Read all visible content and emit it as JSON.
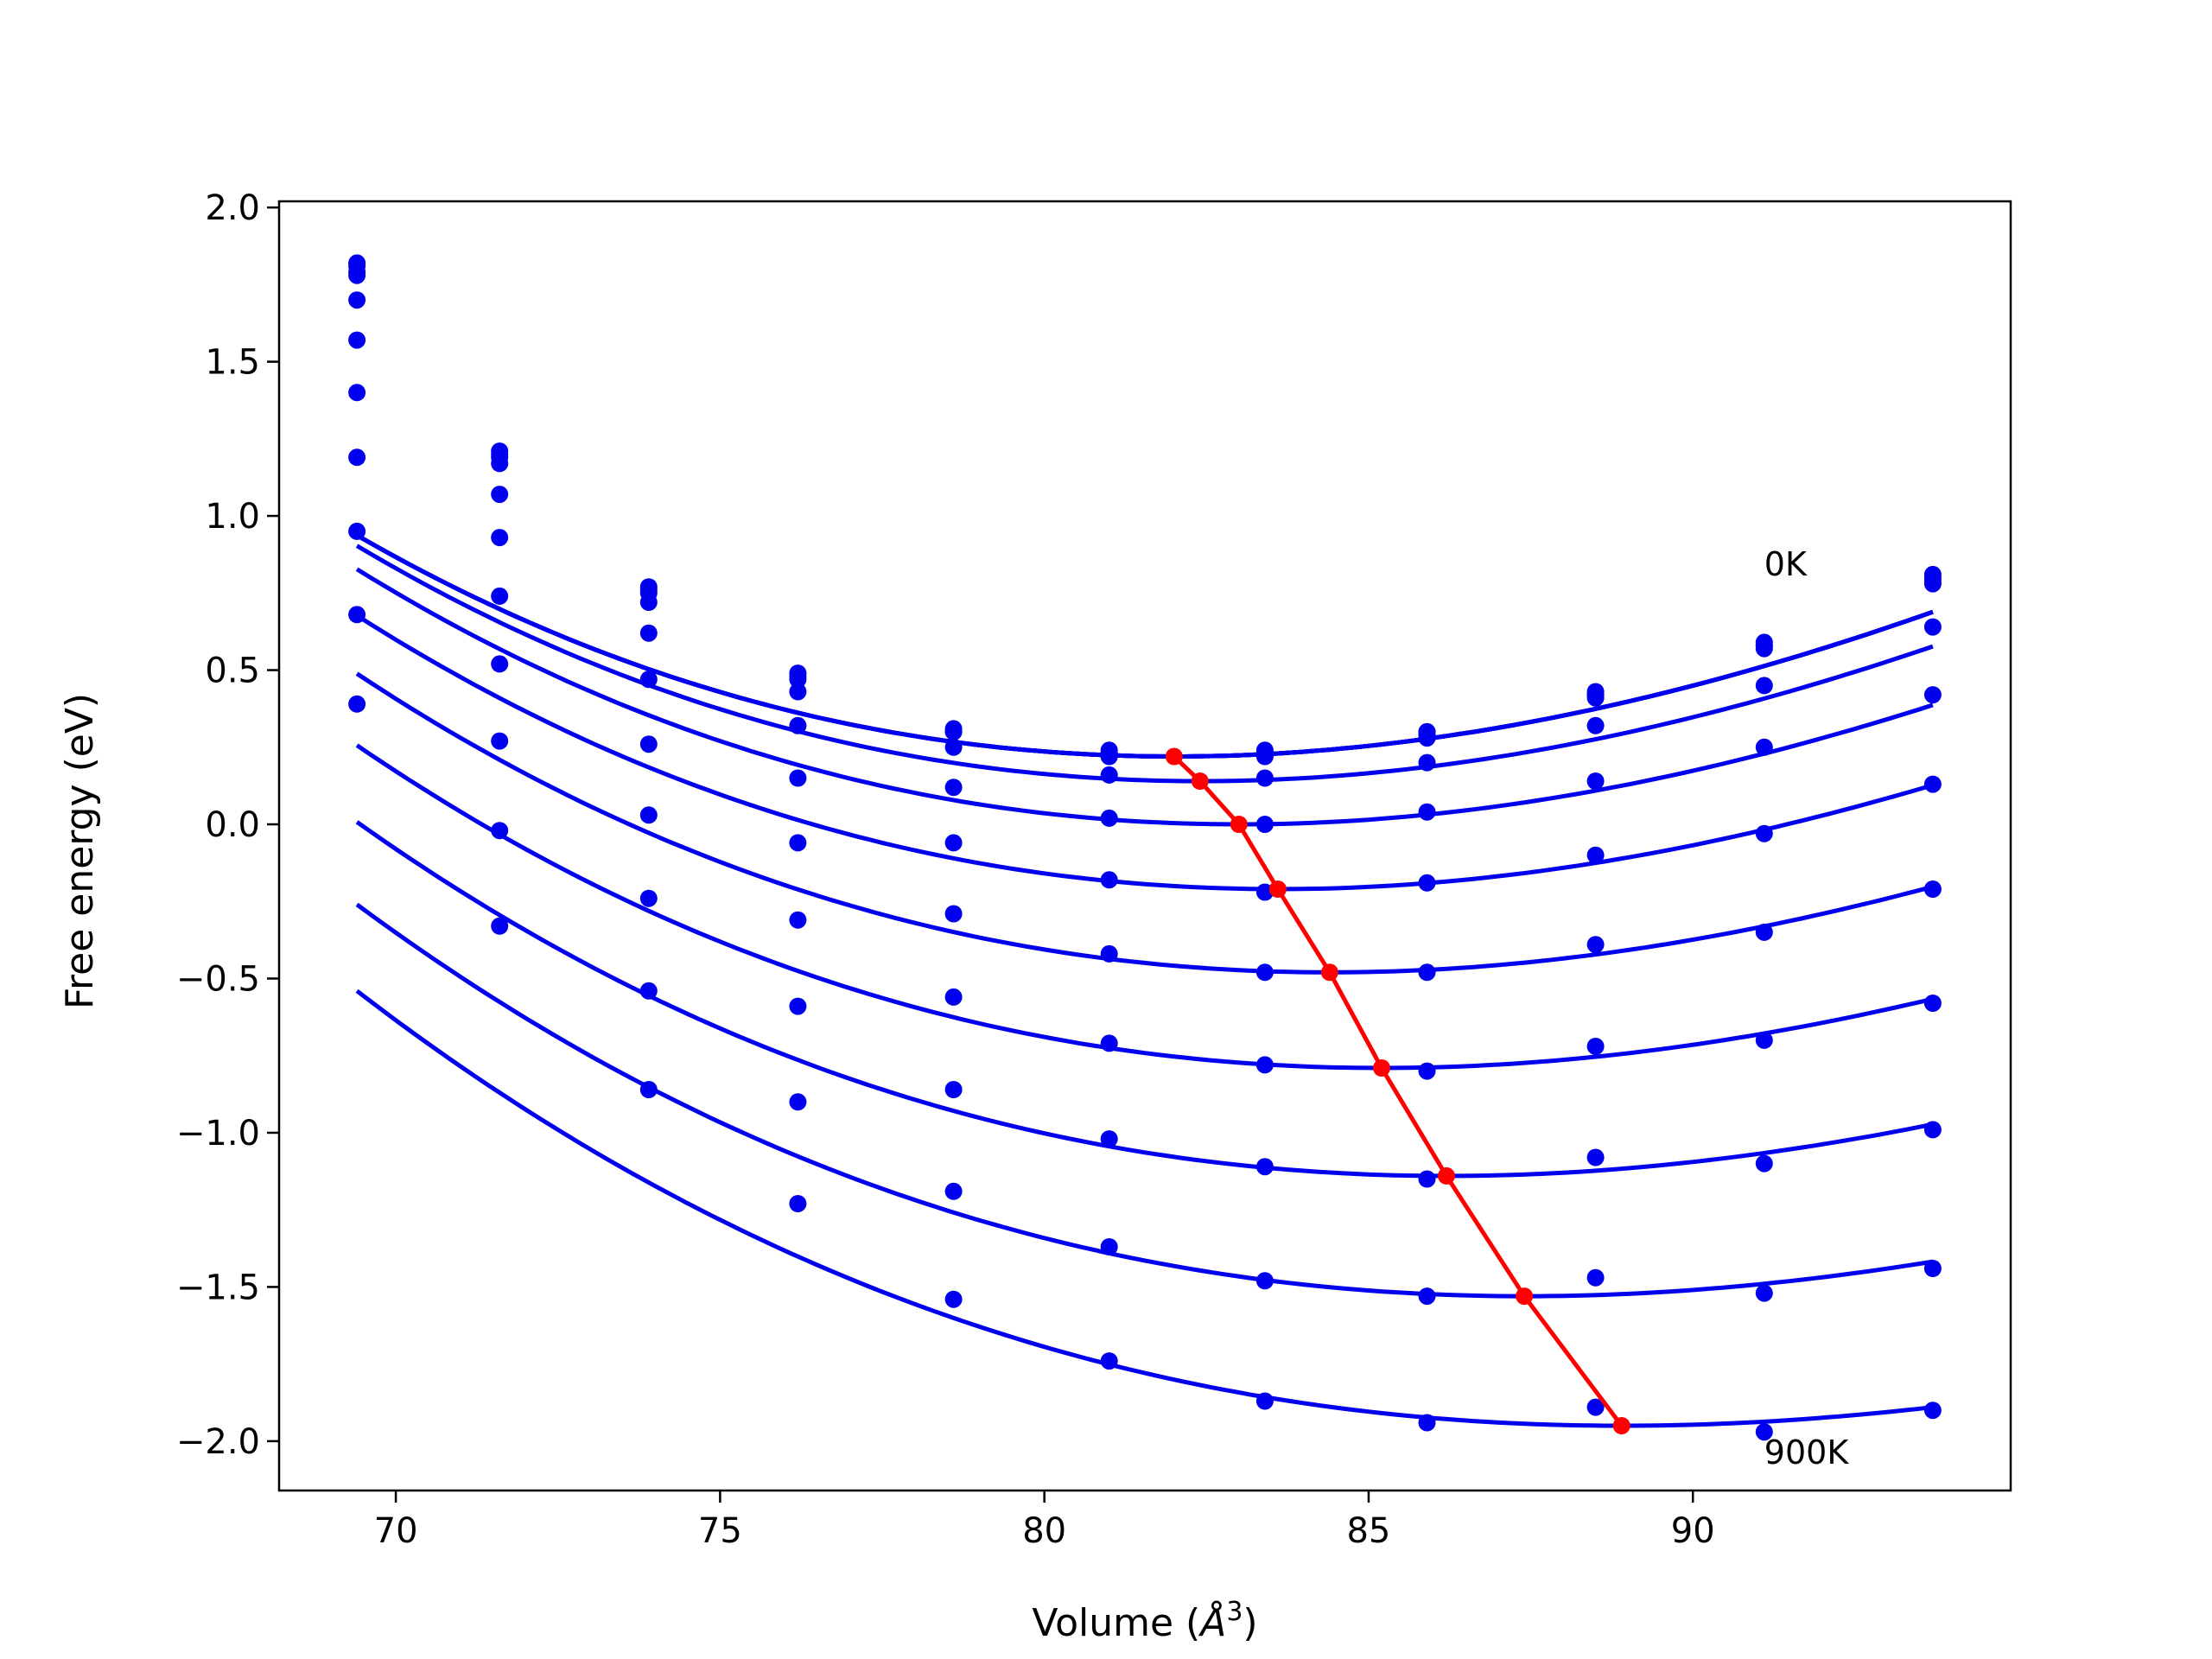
{
  "chart_data": {
    "type": "line",
    "title": "",
    "xlabel": "Volume (",
    "xlabel_unit": "Å",
    "xlabel_sup": "3",
    "xlabel_close": ")",
    "ylabel": "Free energy (eV)",
    "xlim": [
      68.2,
      94.9
    ],
    "ylim": [
      -2.16,
      2.02
    ],
    "xticks": [
      70,
      75,
      80,
      85,
      90
    ],
    "xtick_labels": [
      "70",
      "75",
      "80",
      "85",
      "90"
    ],
    "yticks": [
      2.0,
      1.5,
      1.0,
      0.5,
      0.0,
      -0.5,
      -1.0,
      -1.5,
      -2.0
    ],
    "ytick_labels": [
      "2.0",
      "1.5",
      "1.0",
      "0.5",
      "0.0",
      "−0.5",
      "−1.0",
      "−1.5",
      "−2.0"
    ],
    "grid": false,
    "curve_color": "#0000ee",
    "minimum_color": "#ff0000",
    "x_points": [
      69.4,
      71.6,
      73.9,
      76.2,
      78.6,
      81.0,
      83.4,
      85.9,
      88.5,
      91.1,
      93.7
    ],
    "series": [
      {
        "fit": [
          0.00395,
          82.0,
          0.22
        ],
        "points": [
          1.82,
          1.21,
          0.77,
          0.49,
          0.31,
          0.24,
          0.24,
          0.3,
          0.43,
          0.59,
          0.81
        ]
      },
      {
        "fit": [
          0.00395,
          82.0,
          0.22
        ],
        "points": [
          1.81,
          1.2,
          0.76,
          0.48,
          0.3,
          0.23,
          0.23,
          0.3,
          0.42,
          0.58,
          0.8
        ]
      },
      {
        "fit": [
          0.00395,
          82.0,
          0.22
        ],
        "points": [
          1.79,
          1.19,
          0.75,
          0.47,
          0.3,
          0.23,
          0.23,
          0.29,
          0.42,
          0.58,
          0.79
        ]
      },
      {
        "fit": [
          0.00395,
          82.0,
          0.22
        ],
        "points": [
          1.78,
          1.17,
          0.72,
          0.43,
          0.25,
          0.22,
          0.22,
          0.28,
          0.41,
          0.57,
          0.78
        ]
      },
      {
        "fit": [
          0.00393,
          82.4,
          0.14
        ],
        "points": [
          1.7,
          1.07,
          0.62,
          0.32,
          0.12,
          0.16,
          0.15,
          0.2,
          0.32,
          0.45,
          0.64
        ]
      },
      {
        "fit": [
          0.00386,
          83.0,
          0.0
        ],
        "points": [
          1.57,
          0.93,
          0.47,
          0.15,
          -0.06,
          0.02,
          0.0,
          0.04,
          0.14,
          0.25,
          0.42
        ]
      },
      {
        "fit": [
          0.00376,
          83.6,
          -0.21
        ],
        "points": [
          1.4,
          0.74,
          0.26,
          -0.06,
          -0.29,
          -0.18,
          -0.22,
          -0.19,
          -0.1,
          -0.03,
          0.13
        ]
      },
      {
        "fit": [
          0.00363,
          84.4,
          -0.48
        ],
        "points": [
          1.19,
          0.52,
          0.03,
          -0.31,
          -0.56,
          -0.42,
          -0.48,
          -0.48,
          -0.39,
          -0.35,
          -0.21
        ]
      },
      {
        "fit": [
          0.00348,
          85.2,
          -0.79
        ],
        "points": [
          0.95,
          0.27,
          -0.24,
          -0.59,
          -0.86,
          -0.71,
          -0.78,
          -0.8,
          -0.72,
          -0.7,
          -0.58
        ]
      },
      {
        "fit": [
          0.00331,
          86.2,
          -1.14
        ],
        "points": [
          0.68,
          -0.02,
          -0.54,
          -0.9,
          -1.19,
          -1.02,
          -1.11,
          -1.15,
          -1.08,
          -1.1,
          -0.99
        ]
      },
      {
        "fit": [
          0.00311,
          87.4,
          -1.53
        ],
        "points": [
          0.39,
          -0.33,
          -0.86,
          -1.23,
          -1.54,
          -1.37,
          -1.48,
          -1.53,
          -1.47,
          -1.52,
          -1.44
        ]
      },
      {
        "fit": [
          0.00283,
          88.9,
          -1.95
        ],
        "points": [
          null,
          null,
          null,
          null,
          null,
          -1.74,
          -1.87,
          -1.94,
          -1.89,
          -1.97,
          -1.9
        ]
      }
    ],
    "minimum_line": {
      "x": [
        82.0,
        82.4,
        83.0,
        83.6,
        84.4,
        85.2,
        86.2,
        87.4,
        88.9
      ],
      "y": [
        0.22,
        0.14,
        0.0,
        -0.21,
        -0.48,
        -0.79,
        -1.14,
        -1.53,
        -1.95
      ]
    },
    "annotations": [
      {
        "text": "0K",
        "x": 91.1,
        "y": 0.84
      },
      {
        "text": "900K",
        "x": 91.1,
        "y": -2.04
      }
    ]
  }
}
